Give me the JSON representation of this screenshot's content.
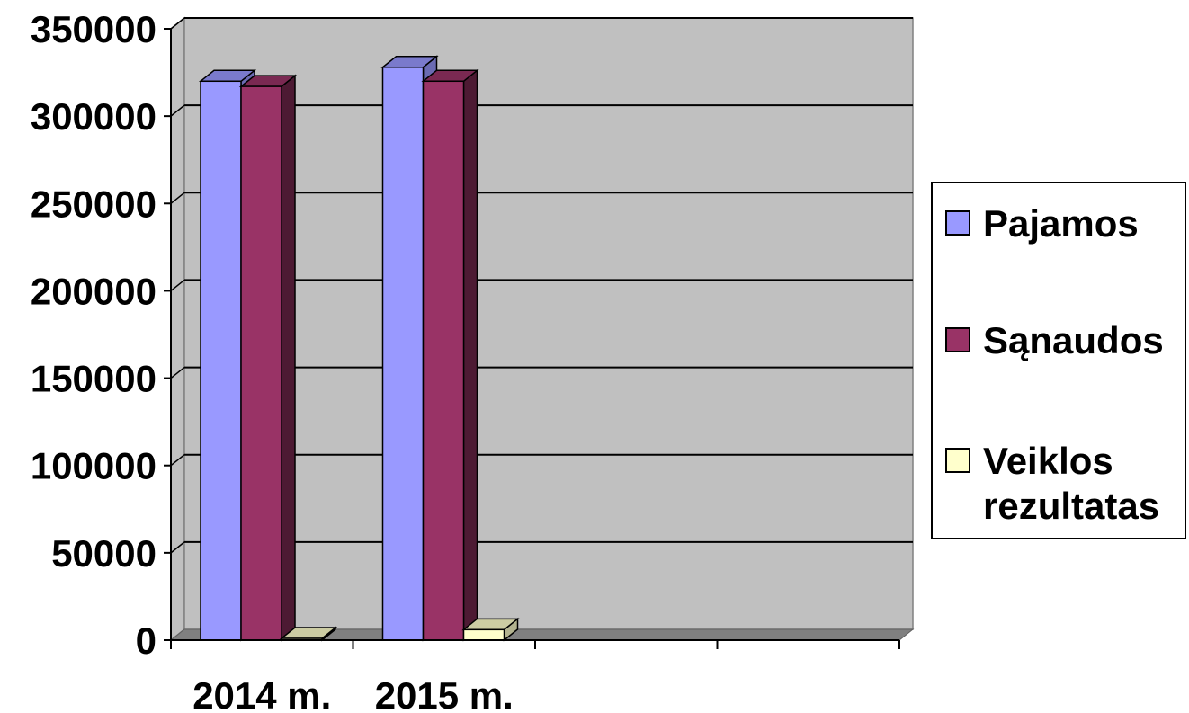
{
  "chart_data": {
    "type": "bar",
    "categories": [
      "2014 m.",
      "2015 m.",
      "",
      ""
    ],
    "series": [
      {
        "name": "Pajamos",
        "values": [
          320000,
          328000,
          null,
          null
        ],
        "color": "#9999ff",
        "side": "#6b6bb3",
        "top": "#7a7acc"
      },
      {
        "name": "Sąnaudos",
        "values": [
          317000,
          320000,
          null,
          null
        ],
        "color": "#993366",
        "side": "#4d1a33",
        "top": "#7a2952"
      },
      {
        "name": "Veiklos rezultatas",
        "values": [
          1000,
          6000,
          null,
          null
        ],
        "color": "#ffffcc",
        "side": "#b3b38f",
        "top": "#cccca3"
      }
    ],
    "yticks": [
      "0",
      "50000",
      "100000",
      "150000",
      "200000",
      "250000",
      "300000",
      "350000"
    ],
    "ylim": [
      0,
      350000
    ],
    "grid": true,
    "legend": "right",
    "plot_background": "#c0c0c0",
    "floor_color": "#808080"
  }
}
